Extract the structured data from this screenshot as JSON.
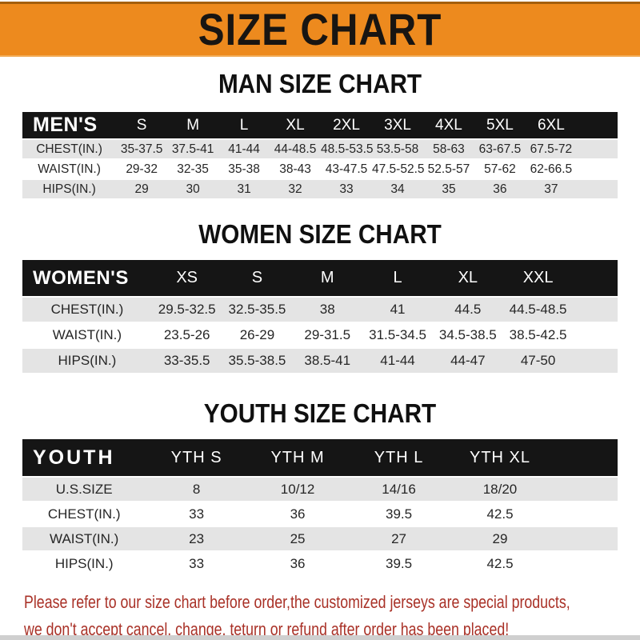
{
  "banner": {
    "title": "SIZE CHART"
  },
  "colors": {
    "banner_bg": "#ED8A1E",
    "bar_bg": "#151515",
    "stripe": "#E4E4E4",
    "footer_text": "#A93127"
  },
  "chart_data": [
    {
      "type": "table",
      "title": "MAN SIZE CHART",
      "header": [
        "MEN'S",
        "S",
        "M",
        "L",
        "XL",
        "2XL",
        "3XL",
        "4XL",
        "5XL",
        "6XL"
      ],
      "rows": [
        [
          "CHEST(IN.)",
          "35-37.5",
          "37.5-41",
          "41-44",
          "44-48.5",
          "48.5-53.5",
          "53.5-58",
          "58-63",
          "63-67.5",
          "67.5-72"
        ],
        [
          "WAIST(IN.)",
          "29-32",
          "32-35",
          "35-38",
          "38-43",
          "43-47.5",
          "47.5-52.5",
          "52.5-57",
          "57-62",
          "62-66.5"
        ],
        [
          "HIPS(IN.)",
          "29",
          "30",
          "31",
          "32",
          "33",
          "34",
          "35",
          "36",
          "37"
        ]
      ]
    },
    {
      "type": "table",
      "title": "WOMEN SIZE CHART",
      "header": [
        "WOMEN'S",
        "XS",
        "S",
        "M",
        "L",
        "XL",
        "XXL"
      ],
      "rows": [
        [
          "CHEST(IN.)",
          "29.5-32.5",
          "32.5-35.5",
          "38",
          "41",
          "44.5",
          "44.5-48.5"
        ],
        [
          "WAIST(IN.)",
          "23.5-26",
          "26-29",
          "29-31.5",
          "31.5-34.5",
          "34.5-38.5",
          "38.5-42.5"
        ],
        [
          "HIPS(IN.)",
          "33-35.5",
          "35.5-38.5",
          "38.5-41",
          "41-44",
          "44-47",
          "47-50"
        ]
      ]
    },
    {
      "type": "table",
      "title": "YOUTH SIZE CHART",
      "header": [
        "YOUTH",
        "YTH S",
        "YTH M",
        "YTH L",
        "YTH XL"
      ],
      "rows": [
        [
          "U.S.SIZE",
          "8",
          "10/12",
          "14/16",
          "18/20"
        ],
        [
          "CHEST(IN.)",
          "33",
          "36",
          "39.5",
          "42.5"
        ],
        [
          "WAIST(IN.)",
          "23",
          "25",
          "27",
          "29"
        ],
        [
          "HIPS(IN.)",
          "33",
          "36",
          "39.5",
          "42.5"
        ]
      ]
    }
  ],
  "footer": {
    "line1": "Please refer to our size chart before order,the customized jerseys are special products,",
    "line2": "we don't accept cancel, change, teturn or refund after order has been placed!"
  }
}
